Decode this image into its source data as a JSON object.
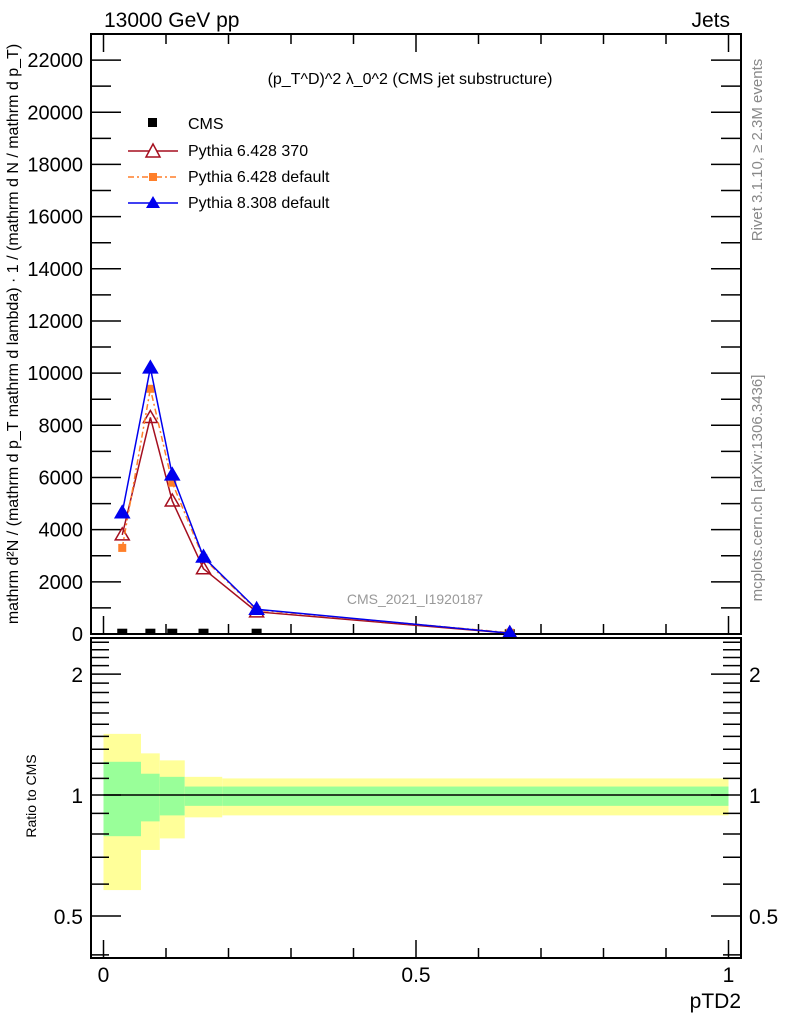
{
  "header": {
    "left": "13000 GeV pp",
    "right": "Jets"
  },
  "side_texts": {
    "rivet": "Rivet 3.1.10, ≥ 2.3M events",
    "mcplots": "mcplots.cern.ch [arXiv:1306.3436]"
  },
  "watermark": "CMS_2021_I1920187",
  "colors": {
    "cms": "#000000",
    "py6_370": "#a50f1f",
    "py6_default": "#ff7f2a",
    "py8_default": "#0000ee",
    "band_inner": "#99ff99",
    "band_outer": "#ffff99",
    "meta_text": "#888888"
  },
  "chart_data": [
    {
      "type": "line",
      "title": "(p_T^D)^2 λ_0^2 (CMS jet substructure)",
      "title_parts": {
        "p": "(p",
        "sup_d": "D",
        "sub_t": "T",
        "close": ")",
        "sup2": "2",
        "lambda": " λ_0",
        "sup2b": "2",
        "rest": " (CMS jet substructure)"
      },
      "ylabel_parts": {
        "num1": "mathrm d²N",
        "den1": "mathrm d p_T mathrm d lambda",
        "num2": "1",
        "den2": "mathrm d N / mathrm d p_T"
      },
      "xlabel": "",
      "xlim": [
        -0.02,
        1.02
      ],
      "ylim": [
        0,
        23000
      ],
      "yticks": [
        0,
        2000,
        4000,
        6000,
        8000,
        10000,
        12000,
        14000,
        16000,
        18000,
        20000,
        22000
      ],
      "ytick_labels": [
        "0",
        "2000",
        "4000",
        "6000",
        "8000",
        "10000",
        "12000",
        "14000",
        "16000",
        "18000",
        "20000",
        "22000"
      ],
      "legend_position": "top-left",
      "x": [
        0.03,
        0.075,
        0.11,
        0.16,
        0.245,
        0.65
      ],
      "series": [
        {
          "name": "CMS",
          "key": "cms",
          "marker": "square",
          "values": [
            50,
            50,
            50,
            50,
            50,
            30
          ]
        },
        {
          "name": "Pythia 6.428 370",
          "key": "py6_370",
          "marker": "open-triangle",
          "values": [
            3800,
            8300,
            5100,
            2500,
            850,
            30
          ]
        },
        {
          "name": "Pythia 6.428 default",
          "key": "py6_default",
          "marker": "square",
          "dash": "dash-dot",
          "values": [
            3300,
            9400,
            5800,
            2900,
            920,
            50
          ]
        },
        {
          "name": "Pythia 8.308 default",
          "key": "py8_default",
          "marker": "triangle",
          "values": [
            4650,
            10200,
            6100,
            2950,
            950,
            30
          ]
        }
      ]
    },
    {
      "type": "area",
      "ylabel": "Ratio to CMS",
      "xlabel": "pTD2",
      "xlim": [
        -0.02,
        1.02
      ],
      "ylim": [
        0.393,
        2.46
      ],
      "yscale": "log",
      "yticks": [
        0.5,
        1,
        2
      ],
      "ytick_labels": [
        "0.5",
        "1",
        "2"
      ],
      "xticks": [
        0,
        0.5,
        1
      ],
      "xtick_labels": [
        "0",
        "0.5",
        "1"
      ],
      "bin_edges": [
        0,
        0.06,
        0.09,
        0.13,
        0.19,
        0.3,
        1.0
      ],
      "band_outer": [
        [
          0.58,
          1.42
        ],
        [
          0.73,
          1.27
        ],
        [
          0.78,
          1.22
        ],
        [
          0.88,
          1.11
        ],
        [
          0.89,
          1.1
        ],
        [
          0.89,
          1.1
        ]
      ],
      "band_inner": [
        [
          0.79,
          1.21
        ],
        [
          0.86,
          1.13
        ],
        [
          0.89,
          1.11
        ],
        [
          0.94,
          1.05
        ],
        [
          0.94,
          1.05
        ],
        [
          0.94,
          1.05
        ]
      ],
      "reference": 1
    }
  ]
}
